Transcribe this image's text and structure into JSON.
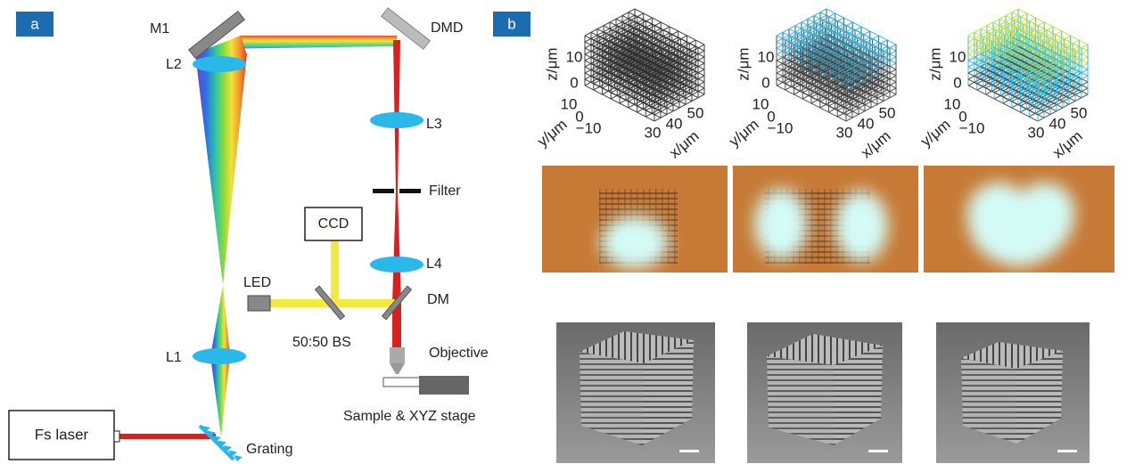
{
  "panel_a": {
    "label": "a",
    "components": {
      "m1": "M1",
      "dmd": "DMD",
      "l2": "L2",
      "l3": "L3",
      "filter": "Filter",
      "ccd": "CCD",
      "l4": "L4",
      "led": "LED",
      "dm": "DM",
      "bs": "50:50 BS",
      "objective": "Objective",
      "l1": "L1",
      "stage": "Sample & XYZ stage",
      "laser": "Fs laser",
      "grating": "Grating"
    }
  },
  "panel_b": {
    "label": "b",
    "plots": [
      {
        "z_label": "z/μm",
        "z_ticks": [
          "10",
          "0"
        ],
        "y_label": "y/μm",
        "y_ticks": [
          "10",
          "0",
          "−10"
        ],
        "x_label": "x/μm",
        "x_ticks": [
          "30",
          "40",
          "50"
        ]
      },
      {
        "z_label": "z/μm",
        "z_ticks": [
          "10",
          "0"
        ],
        "y_label": "y/μm",
        "y_ticks": [
          "10",
          "0",
          "−10"
        ],
        "x_label": "x/μm",
        "x_ticks": [
          "30",
          "40",
          "50"
        ]
      },
      {
        "z_label": "z/μm",
        "z_ticks": [
          "10",
          "0"
        ],
        "y_label": "y/μm",
        "y_ticks": [
          "10",
          "0",
          "−10"
        ],
        "x_label": "x/μm",
        "x_ticks": [
          "30",
          "40",
          "50"
        ]
      }
    ]
  }
}
